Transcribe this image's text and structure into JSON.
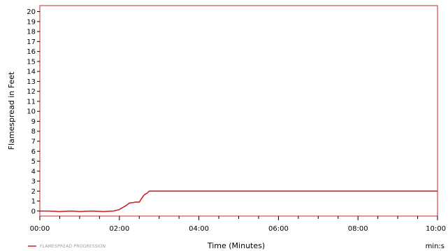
{
  "chart_data": {
    "type": "line",
    "title": "",
    "xlabel": "Time (Minutes)",
    "ylabel": "Flamespread in Feet",
    "x_unit_label": "min:s",
    "xlim": [
      0,
      10
    ],
    "ylim": [
      0,
      20
    ],
    "x_ticks": [
      {
        "value": 0,
        "label": "00:00"
      },
      {
        "value": 2,
        "label": "02:00"
      },
      {
        "value": 4,
        "label": "04:00"
      },
      {
        "value": 6,
        "label": "06:00"
      },
      {
        "value": 8,
        "label": "08:00"
      },
      {
        "value": 10,
        "label": "10:00"
      }
    ],
    "y_ticks": [
      0,
      1,
      2,
      3,
      4,
      5,
      6,
      7,
      8,
      9,
      10,
      11,
      12,
      13,
      14,
      15,
      16,
      17,
      18,
      19,
      20
    ],
    "grid": false,
    "legend_position": "bottom-left",
    "colors": {
      "series": "#c8242a",
      "frame": "#c8242a",
      "legend_text": "#999999"
    },
    "series": [
      {
        "name": "FLAMESPREAD PROGRESSION",
        "x": [
          0,
          0.2,
          0.5,
          0.8,
          1.0,
          1.3,
          1.6,
          1.85,
          2.0,
          2.1,
          2.15,
          2.25,
          2.35,
          2.4,
          2.5,
          2.55,
          2.6,
          2.65,
          2.7,
          2.75,
          2.8,
          4.0,
          6.0,
          8.0,
          10.0
        ],
        "y": [
          0,
          0,
          -0.05,
          0,
          -0.05,
          0,
          -0.05,
          0,
          0.15,
          0.4,
          0.5,
          0.8,
          0.85,
          0.9,
          0.9,
          1.2,
          1.5,
          1.7,
          1.8,
          2.0,
          2.0,
          2.0,
          2.0,
          2.0,
          2.0
        ]
      }
    ]
  }
}
